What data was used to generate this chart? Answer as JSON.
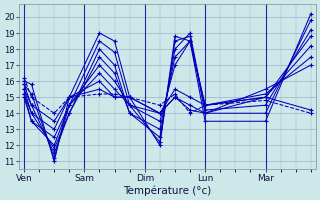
{
  "xlabel": "Température (°c)",
  "bg_color": "#cce8e8",
  "grid_major_color": "#aaaacc",
  "line_color": "#0000bb",
  "ylim": [
    10.5,
    20.8
  ],
  "yticks": [
    11,
    12,
    13,
    14,
    15,
    16,
    17,
    18,
    19,
    20
  ],
  "day_labels": [
    "Ven",
    "Sam",
    "Dim",
    "Lun",
    "Mar"
  ],
  "day_x": [
    0,
    24,
    48,
    72,
    96
  ],
  "xmax": 116,
  "xmin": -2,
  "series": [
    [
      16.0,
      15.8,
      11.0,
      15.0,
      19.0,
      18.5,
      15.0,
      12.0,
      18.8,
      18.5,
      13.5,
      13.5,
      20.2
    ],
    [
      15.8,
      15.2,
      11.2,
      14.5,
      18.5,
      17.8,
      14.5,
      12.2,
      18.5,
      18.8,
      14.0,
      14.0,
      19.8
    ],
    [
      15.5,
      14.5,
      11.5,
      14.0,
      18.0,
      17.0,
      14.0,
      12.5,
      18.0,
      19.0,
      14.2,
      14.5,
      19.2
    ],
    [
      15.2,
      14.0,
      11.8,
      14.0,
      17.5,
      16.5,
      14.0,
      13.0,
      17.5,
      18.5,
      14.5,
      15.0,
      18.8
    ],
    [
      15.0,
      13.5,
      12.0,
      14.5,
      17.0,
      16.0,
      14.5,
      13.5,
      17.0,
      18.5,
      14.5,
      15.0,
      18.2
    ],
    [
      15.2,
      13.5,
      12.5,
      14.5,
      16.5,
      15.5,
      14.5,
      14.0,
      15.5,
      15.0,
      14.5,
      15.2,
      17.5
    ],
    [
      15.5,
      14.0,
      13.0,
      15.0,
      16.0,
      15.0,
      15.0,
      14.0,
      15.0,
      14.5,
      14.0,
      15.5,
      17.0
    ],
    [
      15.8,
      14.5,
      13.5,
      15.0,
      15.5,
      15.0,
      15.0,
      14.0,
      15.0,
      14.2,
      14.0,
      15.0,
      14.2
    ],
    [
      16.2,
      15.0,
      14.0,
      15.0,
      15.2,
      15.2,
      15.0,
      14.5,
      15.2,
      14.0,
      14.5,
      14.8,
      14.0
    ]
  ],
  "x_positions": [
    0,
    3,
    12,
    18,
    30,
    36,
    42,
    54,
    60,
    66,
    72,
    96,
    114
  ],
  "line_styles": [
    "-",
    "-",
    "-",
    "-",
    "-",
    "-",
    "-",
    "-",
    "--"
  ]
}
